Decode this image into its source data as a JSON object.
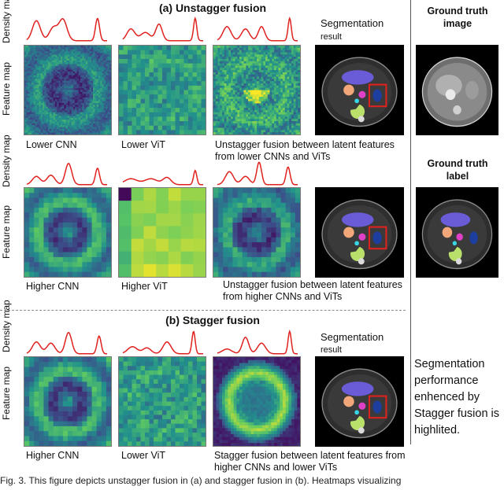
{
  "sections": {
    "a_title": "(a) Unstagger fusion",
    "b_title": "(b) Stagger fusion"
  },
  "axis_labels": {
    "density": "Density map",
    "feature": "Feature map"
  },
  "segmentation": {
    "label": "Segmentation",
    "sub": "result"
  },
  "captions": {
    "row1_lower_cnn": "Lower CNN",
    "row1_lower_vit": "Lower ViT",
    "row1_fusion": "Unstagger fusion between latent features from lower CNNs and ViTs",
    "row2_higher_cnn": "Higher CNN",
    "row2_higher_vit": "Higher ViT",
    "row2_fusion": "Unstagger fusion between latent features from higher CNNs and ViTs",
    "row3_higher_cnn": "Higher CNN",
    "row3_lower_vit": "Lower ViT",
    "row3_fusion": "Stagger fusion between latent features from higher CNNs and lower ViTs"
  },
  "ground_truth": {
    "image_title": "Ground truth image",
    "label_title": "Ground truth label"
  },
  "side_note": "Segmentation performance enhenced by Stagger fusion is highlited.",
  "footer": "Fig. 3. This figure depicts unstagger fusion in (a) and stagger fusion in (b). Heatmaps visualizing",
  "colors": {
    "density_curve": "#e0221f",
    "highlight_box": "#e0221f",
    "feature_low": "#3b3f8c",
    "feature_mid": "#2f9a8e",
    "feature_high": "#e4e51e"
  },
  "icons": {
    "tile_style": "viridis-heatmap",
    "ct_style": "grayscale-ct-slice"
  }
}
